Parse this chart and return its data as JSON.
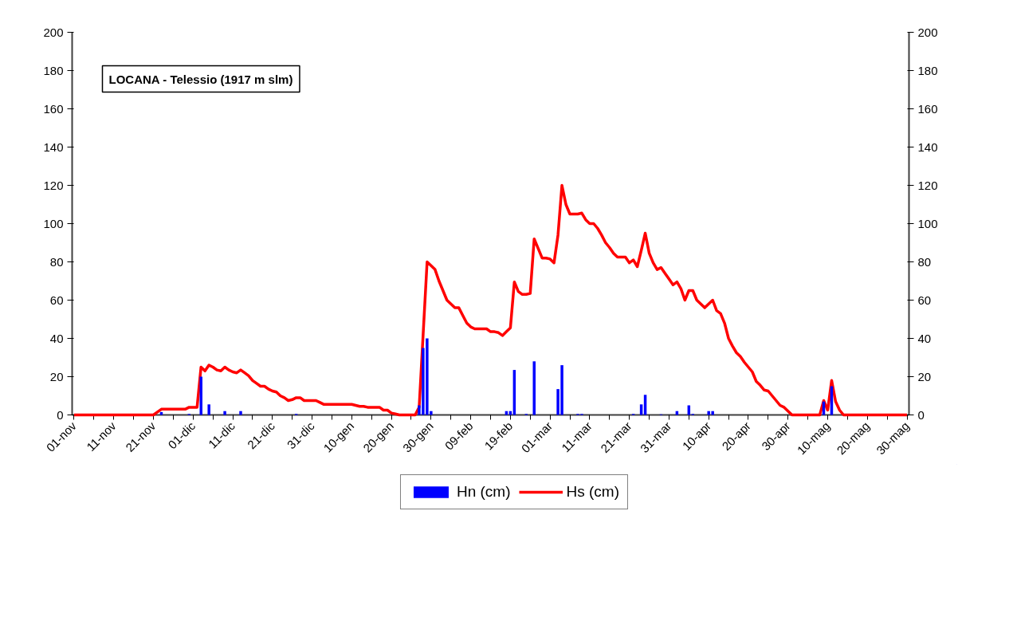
{
  "chart_data": {
    "type": "bar",
    "title": "LOCANA - Telessio (1917 m slm)",
    "ylim": [
      0,
      200
    ],
    "yticks": [
      0,
      20,
      40,
      60,
      80,
      100,
      120,
      140,
      160,
      180,
      200
    ],
    "y2lim": [
      0,
      200
    ],
    "y2ticks": [
      0,
      20,
      40,
      60,
      80,
      100,
      120,
      140,
      160,
      180,
      200
    ],
    "categories": [
      "01-nov",
      null,
      null,
      null,
      null,
      null,
      null,
      null,
      null,
      null,
      "11-nov",
      null,
      null,
      null,
      null,
      null,
      null,
      null,
      null,
      null,
      "21-nov",
      null,
      null,
      null,
      null,
      null,
      null,
      null,
      null,
      null,
      "01-dic",
      null,
      null,
      null,
      null,
      null,
      null,
      null,
      null,
      null,
      "11-dic",
      null,
      null,
      null,
      null,
      null,
      null,
      null,
      null,
      null,
      "21-dic",
      null,
      null,
      null,
      null,
      null,
      null,
      null,
      null,
      null,
      "31-dic",
      null,
      null,
      null,
      null,
      null,
      null,
      null,
      null,
      null,
      "10-gen",
      null,
      null,
      null,
      null,
      null,
      null,
      null,
      null,
      null,
      "20-gen",
      null,
      null,
      null,
      null,
      null,
      null,
      null,
      null,
      null,
      "30-gen",
      null,
      null,
      null,
      null,
      null,
      null,
      null,
      null,
      null,
      "09-feb",
      null,
      null,
      null,
      null,
      null,
      null,
      null,
      null,
      null,
      "19-feb",
      null,
      null,
      null,
      null,
      null,
      null,
      null,
      null,
      null,
      "01-mar",
      null,
      null,
      null,
      null,
      null,
      null,
      null,
      null,
      null,
      "11-mar",
      null,
      null,
      null,
      null,
      null,
      null,
      null,
      null,
      null,
      "21-mar",
      null,
      null,
      null,
      null,
      null,
      null,
      null,
      null,
      null,
      "31-mar",
      null,
      null,
      null,
      null,
      null,
      null,
      null,
      null,
      null,
      "10-apr",
      null,
      null,
      null,
      null,
      null,
      null,
      null,
      null,
      null,
      "20-apr",
      null,
      null,
      null,
      null,
      null,
      null,
      null,
      null,
      null,
      "30-apr",
      null,
      null,
      null,
      null,
      null,
      null,
      null,
      null,
      null,
      "10-mag",
      null,
      null,
      null,
      null,
      null,
      null,
      null,
      null,
      null,
      "20-mag",
      null,
      null,
      null,
      null,
      null,
      null,
      null,
      null,
      null,
      "30-mag"
    ],
    "grid": false,
    "legend": "bottom",
    "series": [
      {
        "name": "Hn (cm)",
        "color": "#0000ff",
        "values": [
          null,
          null,
          null,
          null,
          null,
          null,
          null,
          null,
          null,
          null,
          null,
          null,
          null,
          null,
          null,
          null,
          null,
          null,
          null,
          null,
          null,
          null,
          1.5,
          null,
          null,
          null,
          null,
          null,
          null,
          0.5,
          null,
          null,
          20,
          null,
          5.5,
          null,
          null,
          null,
          2,
          null,
          null,
          null,
          2,
          null,
          null,
          null,
          null,
          null,
          null,
          null,
          null,
          null,
          null,
          null,
          null,
          null,
          0.5,
          null,
          null,
          null,
          null,
          null,
          null,
          null,
          null,
          null,
          null,
          null,
          null,
          null,
          null,
          null,
          null,
          null,
          null,
          null,
          null,
          null,
          null,
          null,
          null,
          null,
          null,
          null,
          null,
          null,
          null,
          5,
          35,
          40,
          2,
          null,
          null,
          null,
          null,
          null,
          null,
          null,
          null,
          null,
          null,
          null,
          null,
          null,
          null,
          null,
          null,
          null,
          null,
          2,
          2,
          23.5,
          null,
          null,
          0.5,
          null,
          28,
          null,
          null,
          null,
          null,
          null,
          13.5,
          26,
          null,
          null,
          null,
          0.5,
          0.5,
          null,
          null,
          null,
          null,
          null,
          null,
          null,
          null,
          null,
          null,
          null,
          null,
          0.5,
          null,
          5.5,
          10.5,
          null,
          null,
          null,
          0.3,
          null,
          null,
          null,
          2,
          null,
          null,
          5,
          0.5,
          null,
          null,
          null,
          2,
          2,
          null,
          null,
          null,
          null,
          null,
          null,
          null,
          null,
          null,
          null,
          null,
          null,
          null,
          null,
          null,
          null,
          null,
          null,
          null,
          null,
          null,
          null,
          null,
          null,
          null,
          null,
          null,
          7,
          null,
          15,
          null,
          null,
          null,
          null,
          null,
          null,
          null,
          null,
          null,
          null,
          null,
          null,
          null,
          null,
          null,
          null,
          null,
          null,
          null
        ]
      },
      {
        "name": "Hs (cm)",
        "type": "line",
        "color": "#ff0000",
        "values": [
          0,
          0,
          0,
          0,
          0,
          0,
          0,
          0,
          0,
          0,
          0,
          0,
          0,
          0,
          0,
          0,
          0,
          0,
          0,
          0,
          0,
          1.5,
          3,
          3,
          3,
          3,
          3,
          3,
          3,
          4,
          4,
          4,
          25,
          23,
          26,
          25,
          23.5,
          23,
          25,
          23.5,
          22.5,
          22,
          23.5,
          22,
          20.5,
          18,
          16.5,
          15,
          15,
          13.5,
          12.5,
          12,
          10,
          9,
          7.5,
          8,
          9,
          9,
          7.5,
          7.5,
          7.5,
          7.5,
          6.5,
          5.5,
          5.5,
          5.5,
          5.5,
          5.5,
          5.5,
          5.5,
          5.5,
          5,
          4.5,
          4.5,
          4,
          4,
          4,
          4,
          2.5,
          2.5,
          1,
          0.5,
          0,
          0,
          0,
          0,
          0,
          4,
          42,
          80,
          78,
          76,
          70,
          65,
          60,
          58,
          56,
          56,
          52,
          48,
          46,
          45,
          45,
          45,
          45,
          43.5,
          43.5,
          43,
          41.5,
          43.5,
          45.5,
          69.5,
          64.5,
          63,
          63,
          63.5,
          92,
          87,
          82,
          82,
          81.5,
          79.5,
          94,
          120,
          110,
          105,
          105,
          105,
          105.5,
          102,
          100,
          100,
          97.5,
          94,
          90,
          87.5,
          84.5,
          82.5,
          82.5,
          82.5,
          79.5,
          81,
          77.5,
          86,
          95,
          84.5,
          79.5,
          76,
          77,
          74,
          71,
          68,
          69.5,
          66,
          60,
          65,
          65,
          60,
          58,
          56,
          58,
          60,
          54.5,
          53,
          48,
          40,
          36,
          32.5,
          30.5,
          27.5,
          25,
          22.5,
          17.5,
          15.5,
          13,
          12.5,
          10,
          7.5,
          5,
          4,
          2,
          0,
          0,
          0,
          0,
          0,
          0,
          0,
          0,
          7.5,
          2.5,
          18,
          7,
          2.5,
          0,
          0,
          0,
          0,
          0,
          0,
          0,
          0,
          0,
          0,
          0,
          0,
          0,
          0,
          0,
          0,
          0
        ]
      }
    ]
  }
}
